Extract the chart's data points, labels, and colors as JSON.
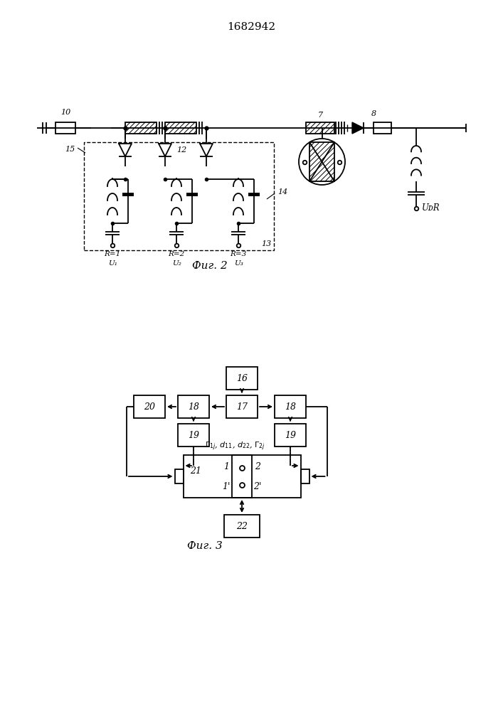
{
  "title": "1682942",
  "fig2_label": "Фиг. 2",
  "fig3_label": "Фиг. 3",
  "bg_color": "#ffffff",
  "line_color": "#000000"
}
